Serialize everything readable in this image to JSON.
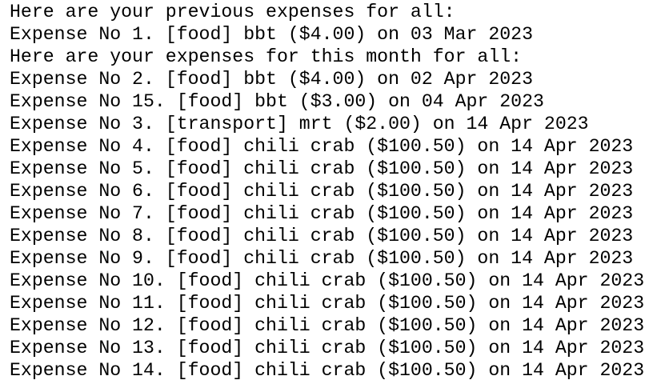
{
  "terminal": {
    "lines": [
      "Here are your previous expenses for all:",
      "Expense No 1. [food] bbt ($4.00) on 03 Mar 2023",
      "Here are your expenses for this month for all:",
      "Expense No 2. [food] bbt ($4.00) on 02 Apr 2023",
      "Expense No 15. [food] bbt ($3.00) on 04 Apr 2023",
      "Expense No 3. [transport] mrt ($2.00) on 14 Apr 2023",
      "Expense No 4. [food] chili crab ($100.50) on 14 Apr 2023",
      "Expense No 5. [food] chili crab ($100.50) on 14 Apr 2023",
      "Expense No 6. [food] chili crab ($100.50) on 14 Apr 2023",
      "Expense No 7. [food] chili crab ($100.50) on 14 Apr 2023",
      "Expense No 8. [food] chili crab ($100.50) on 14 Apr 2023",
      "Expense No 9. [food] chili crab ($100.50) on 14 Apr 2023",
      "Expense No 10. [food] chili crab ($100.50) on 14 Apr 2023",
      "Expense No 11. [food] chili crab ($100.50) on 14 Apr 2023",
      "Expense No 12. [food] chili crab ($100.50) on 14 Apr 2023",
      "Expense No 13. [food] chili crab ($100.50) on 14 Apr 2023",
      "Expense No 14. [food] chili crab ($100.50) on 14 Apr 2023"
    ]
  }
}
